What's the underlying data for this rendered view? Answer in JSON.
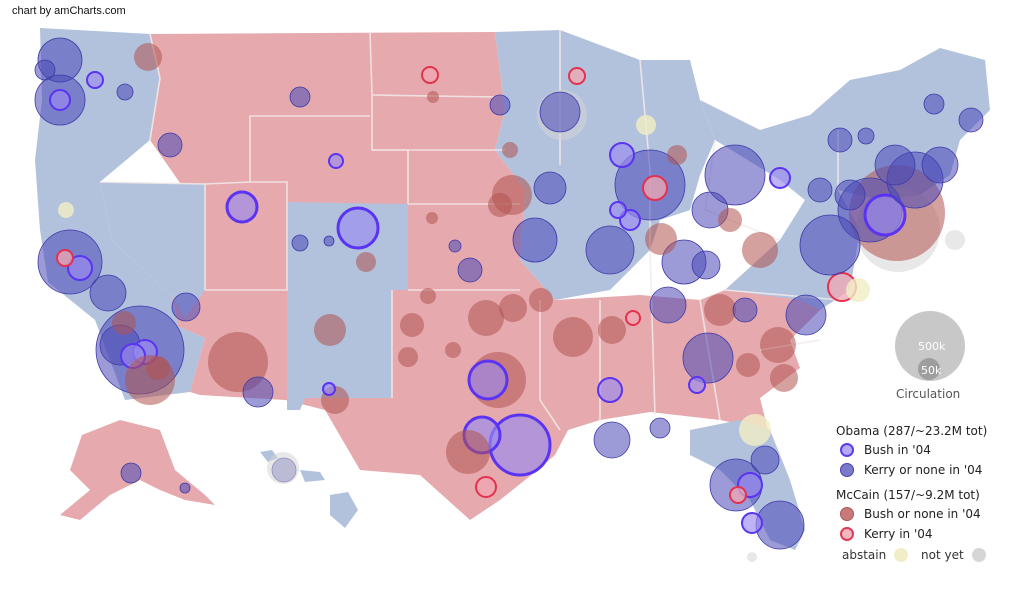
{
  "credit": "chart by amCharts.com",
  "colors": {
    "blue_state": "#b2c2dd",
    "red_state": "#e6a9ad",
    "obama_kerry": "#4b49b6",
    "obama_bush": "#9a8af0",
    "obama_bush_ring": "#5a34f2",
    "mccain_bush": "#b05451",
    "mccain_kerry_ring": "#e3324f",
    "abstain": "#f1edc6",
    "not_yet": "#d6d6d6"
  },
  "circulation": {
    "title": "Circulation",
    "large_label": "500k",
    "small_label": "50k"
  },
  "legend": {
    "obama_header": "Obama (287/~23.2M tot)",
    "obama_bush": "Bush in '04",
    "obama_kerry": "Kerry or none in '04",
    "mccain_header": "McCain (157/~9.2M tot)",
    "mccain_bush": "Bush or none in '04",
    "mccain_kerry": "Kerry in '04",
    "abstain": "abstain",
    "not_yet": "not yet"
  }
}
